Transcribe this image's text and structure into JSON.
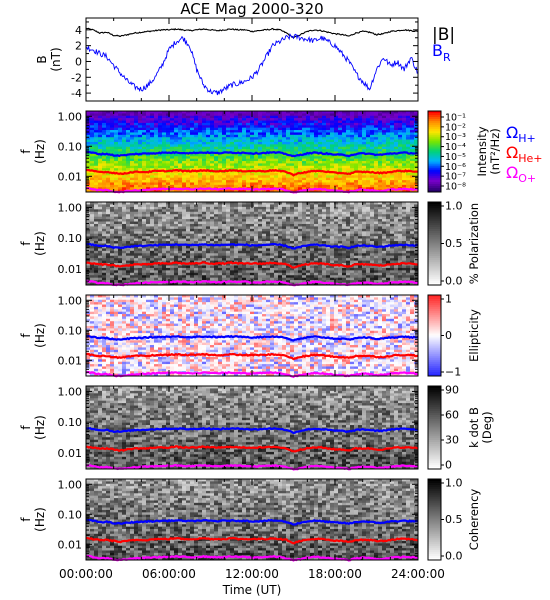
{
  "title": "ACE Mag 2000-320",
  "chart_data": [
    {
      "type": "line",
      "title": "ACE Mag 2000-320",
      "ylabel": "B",
      "yunit": "(nT)",
      "ylim": [
        -5,
        5.5
      ],
      "yticks": [
        4,
        2,
        0,
        -2,
        -4
      ],
      "xlim": [
        0,
        24
      ],
      "series": [
        {
          "name": "|B|",
          "color": "#000000",
          "x": [
            0,
            0.5,
            1,
            1.5,
            2,
            2.5,
            3,
            3.5,
            4,
            4.5,
            5,
            5.5,
            6,
            6.5,
            7,
            7.5,
            8,
            8.5,
            9,
            9.5,
            10,
            10.5,
            11,
            11.5,
            12,
            12.5,
            13,
            13.5,
            14,
            14.5,
            15,
            15.5,
            16,
            16.5,
            17,
            17.5,
            18,
            18.5,
            19,
            19.5,
            20,
            20.5,
            21,
            21.5,
            22,
            22.5,
            23,
            23.5,
            24
          ],
          "values": [
            4.2,
            4.0,
            3.6,
            3.7,
            3.3,
            3.2,
            3.4,
            3.6,
            3.7,
            3.8,
            3.9,
            4.0,
            4.0,
            4.1,
            4.0,
            3.9,
            4.0,
            4.1,
            4.0,
            3.9,
            4.0,
            4.1,
            4.0,
            4.0,
            3.8,
            3.9,
            4.0,
            4.1,
            4.0,
            3.6,
            3.0,
            3.4,
            3.8,
            4.0,
            3.9,
            3.7,
            3.5,
            3.4,
            3.2,
            3.6,
            3.8,
            3.7,
            3.4,
            3.5,
            3.8,
            3.9,
            4.0,
            3.9,
            3.8
          ]
        },
        {
          "name": "B_R",
          "color": "#0000ff",
          "x": [
            0,
            0.5,
            1,
            1.5,
            2,
            2.5,
            3,
            3.5,
            4,
            4.5,
            5,
            5.5,
            6,
            6.5,
            7,
            7.5,
            8,
            8.5,
            9,
            9.5,
            10,
            10.5,
            11,
            11.5,
            12,
            12.5,
            13,
            13.5,
            14,
            14.5,
            15,
            15.5,
            16,
            16.5,
            17,
            17.5,
            18,
            18.5,
            19,
            19.5,
            20,
            20.5,
            21,
            21.5,
            22,
            22.5,
            23,
            23.5,
            24
          ],
          "values": [
            1.8,
            1.5,
            1.0,
            0.6,
            -0.5,
            -1.5,
            -2.5,
            -3.2,
            -3.5,
            -3.0,
            -2.0,
            -0.5,
            1.5,
            2.5,
            3.0,
            2.0,
            -1.0,
            -3.0,
            -3.8,
            -4.0,
            -3.5,
            -3.0,
            -2.8,
            -2.5,
            -2.0,
            -1.0,
            0.5,
            2.0,
            2.5,
            3.0,
            3.2,
            3.0,
            2.8,
            2.6,
            3.0,
            2.5,
            2.0,
            1.0,
            0.0,
            -1.5,
            -2.5,
            -3.5,
            -1.0,
            0.5,
            -0.5,
            0.0,
            -1.0,
            0.5,
            -1.5
          ]
        }
      ]
    },
    {
      "type": "heatmap",
      "ylabel": "f",
      "yunit": "(Hz)",
      "yscale": "log",
      "ylim": [
        0.003,
        1.5
      ],
      "ytick_labels": [
        "1.00",
        "0.10",
        "0.01"
      ],
      "colorbar_label": "Intensity",
      "colorbar_unit": "(nT²/Hz)",
      "colorbar_ticks": [
        "10⁻¹",
        "10⁻²",
        "10⁻³",
        "10⁻⁴",
        "10⁻⁵",
        "10⁻⁶",
        "10⁻⁷",
        "10⁻⁸"
      ],
      "colormap": "rainbow",
      "annotations": [
        {
          "text": "Ω",
          "sub": "H+",
          "color": "#0000ff"
        },
        {
          "text": "Ω",
          "sub": "He+",
          "color": "#ff0000"
        },
        {
          "text": "Ω",
          "sub": "O+",
          "color": "#ff00ff"
        }
      ]
    },
    {
      "type": "heatmap",
      "ylabel": "f",
      "yunit": "(Hz)",
      "yscale": "log",
      "ylim": [
        0.003,
        1.5
      ],
      "ytick_labels": [
        "1.00",
        "0.10",
        "0.01"
      ],
      "colorbar_label": "% Polarization",
      "colorbar_ticks": [
        "1.0",
        "0.5",
        "0.0"
      ],
      "colormap": "grayscale"
    },
    {
      "type": "heatmap",
      "ylabel": "f",
      "yunit": "(Hz)",
      "yscale": "log",
      "ylim": [
        0.003,
        1.5
      ],
      "ytick_labels": [
        "1.00",
        "0.10",
        "0.01"
      ],
      "colorbar_label": "Ellipticity",
      "colorbar_ticks": [
        "1",
        "0",
        "−1"
      ],
      "colormap": "blue-white-red"
    },
    {
      "type": "heatmap",
      "ylabel": "f",
      "yunit": "(Hz)",
      "yscale": "log",
      "ylim": [
        0.003,
        1.5
      ],
      "ytick_labels": [
        "1.00",
        "0.10",
        "0.01"
      ],
      "colorbar_label": "k dot B",
      "colorbar_unit": "(Deg)",
      "colorbar_ticks": [
        "90",
        "60",
        "30",
        "0"
      ],
      "colormap": "grayscale"
    },
    {
      "type": "heatmap",
      "ylabel": "f",
      "yunit": "(Hz)",
      "yscale": "log",
      "ylim": [
        0.003,
        1.5
      ],
      "ytick_labels": [
        "1.00",
        "0.10",
        "0.01"
      ],
      "colorbar_label": "Coherency",
      "colorbar_ticks": [
        "1.0",
        "0.5",
        "0.0"
      ],
      "colormap": "grayscale"
    }
  ],
  "gyrofrequencies": {
    "x": [
      0,
      0.5,
      1,
      1.5,
      2,
      2.5,
      3,
      3.5,
      4,
      4.5,
      5,
      5.5,
      6,
      6.5,
      7,
      7.5,
      8,
      8.5,
      9,
      9.5,
      10,
      10.5,
      11,
      11.5,
      12,
      12.5,
      13,
      13.5,
      14,
      14.5,
      15,
      15.5,
      16,
      16.5,
      17,
      17.5,
      18,
      18.5,
      19,
      19.5,
      20,
      20.5,
      21,
      21.5,
      22,
      22.5,
      23,
      23.5,
      24
    ],
    "H+": [
      0.064,
      0.061,
      0.055,
      0.056,
      0.05,
      0.049,
      0.052,
      0.055,
      0.056,
      0.058,
      0.059,
      0.061,
      0.061,
      0.062,
      0.061,
      0.059,
      0.061,
      0.062,
      0.061,
      0.059,
      0.061,
      0.062,
      0.061,
      0.061,
      0.058,
      0.059,
      0.061,
      0.062,
      0.061,
      0.055,
      0.046,
      0.052,
      0.058,
      0.061,
      0.059,
      0.056,
      0.053,
      0.052,
      0.049,
      0.055,
      0.058,
      0.056,
      0.052,
      0.053,
      0.058,
      0.059,
      0.061,
      0.059,
      0.058
    ],
    "He+": [
      0.016,
      0.015,
      0.014,
      0.014,
      0.013,
      0.012,
      0.013,
      0.014,
      0.014,
      0.014,
      0.015,
      0.015,
      0.015,
      0.016,
      0.015,
      0.015,
      0.015,
      0.016,
      0.015,
      0.015,
      0.015,
      0.016,
      0.015,
      0.015,
      0.015,
      0.015,
      0.015,
      0.016,
      0.015,
      0.014,
      0.011,
      0.013,
      0.014,
      0.015,
      0.015,
      0.014,
      0.013,
      0.013,
      0.012,
      0.014,
      0.014,
      0.014,
      0.013,
      0.013,
      0.014,
      0.015,
      0.015,
      0.015,
      0.014
    ],
    "O+": [
      0.004,
      0.0038,
      0.0034,
      0.0035,
      0.0031,
      0.003,
      0.0032,
      0.0034,
      0.0035,
      0.0036,
      0.0037,
      0.0038,
      0.0038,
      0.0039,
      0.0038,
      0.0037,
      0.0038,
      0.0039,
      0.0038,
      0.0037,
      0.0038,
      0.0039,
      0.0038,
      0.0038,
      0.0036,
      0.0037,
      0.0038,
      0.0039,
      0.0038,
      0.0034,
      0.0029,
      0.0032,
      0.0036,
      0.0038,
      0.0037,
      0.0035,
      0.0033,
      0.0032,
      0.003,
      0.0034,
      0.0036,
      0.0035,
      0.0032,
      0.0033,
      0.0036,
      0.0037,
      0.0038,
      0.0037,
      0.0036
    ]
  },
  "x_axis": {
    "label": "Time (UT)",
    "tick_labels": [
      "00:00:00",
      "06:00:00",
      "12:00:00",
      "18:00:00",
      "24:00:00"
    ],
    "tick_hours": [
      0,
      6,
      12,
      18,
      24
    ]
  }
}
